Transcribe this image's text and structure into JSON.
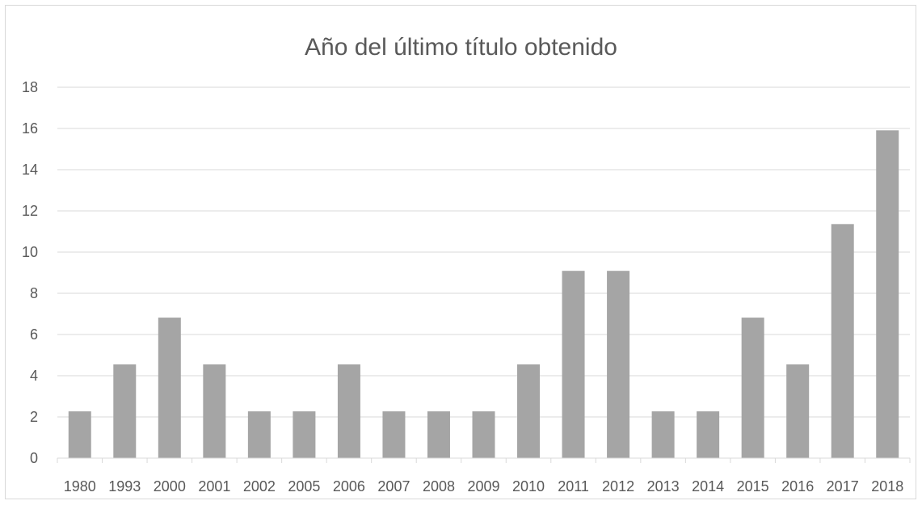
{
  "chart_data": {
    "type": "bar",
    "title": "Año del último título obtenido",
    "xlabel": "",
    "ylabel": "",
    "categories": [
      "1980",
      "1993",
      "2000",
      "2001",
      "2002",
      "2005",
      "2006",
      "2007",
      "2008",
      "2009",
      "2010",
      "2011",
      "2012",
      "2013",
      "2014",
      "2015",
      "2016",
      "2017",
      "2018"
    ],
    "values": [
      2.27,
      4.55,
      6.82,
      4.55,
      2.27,
      2.27,
      4.55,
      2.27,
      2.27,
      2.27,
      4.55,
      9.09,
      9.09,
      2.27,
      2.27,
      6.82,
      4.55,
      11.36,
      15.91
    ],
    "ylim": [
      0,
      18
    ],
    "yticks": [
      "0",
      "2",
      "4",
      "6",
      "8",
      "10",
      "12",
      "14",
      "16",
      "18"
    ],
    "grid": true,
    "legend": "none",
    "bar_color": "#a5a5a5",
    "grid_color": "#d9d9d9"
  }
}
